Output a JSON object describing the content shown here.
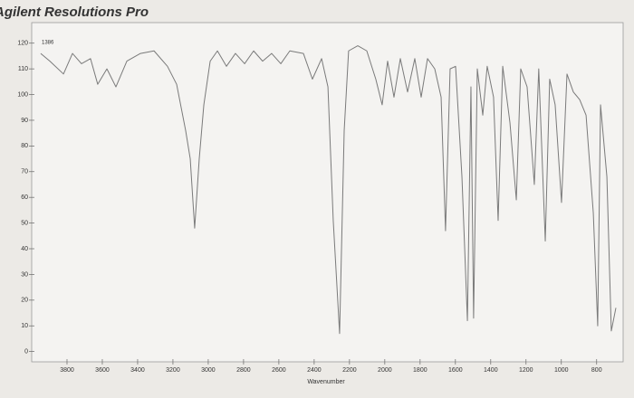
{
  "chart_data": {
    "type": "line",
    "title": "Agilent Resolutions Pro",
    "annotation": "1386",
    "x_label": "Wavenumber",
    "x": [
      3949,
      3897,
      3820,
      3769,
      3718,
      3667,
      3626,
      3574,
      3523,
      3461,
      3384,
      3307,
      3231,
      3179,
      3128,
      3102,
      3077,
      3051,
      3025,
      2989,
      2948,
      2897,
      2846,
      2794,
      2743,
      2692,
      2641,
      2589,
      2538,
      2461,
      2410,
      2358,
      2322,
      2292,
      2256,
      2230,
      2205,
      2153,
      2102,
      2051,
      2015,
      1984,
      1948,
      1912,
      1871,
      1830,
      1794,
      1758,
      1717,
      1681,
      1656,
      1630,
      1599,
      1563,
      1532,
      1512,
      1497,
      1476,
      1445,
      1420,
      1384,
      1358,
      1332,
      1291,
      1255,
      1230,
      1194,
      1153,
      1128,
      1091,
      1066,
      1035,
      999,
      968,
      932,
      896,
      860,
      819,
      794,
      778,
      742,
      717,
      691
    ],
    "values": [
      116,
      113,
      108,
      116,
      112,
      114,
      104,
      110,
      103,
      113,
      116,
      117,
      111,
      104,
      86,
      75,
      48,
      75,
      96,
      113,
      117,
      111,
      116,
      112,
      117,
      113,
      116,
      112,
      117,
      116,
      106,
      114,
      103,
      51,
      7,
      86,
      117,
      119,
      117,
      106,
      96,
      113,
      99,
      114,
      101,
      114,
      99,
      114,
      110,
      99,
      47,
      110,
      111,
      68,
      12,
      103,
      13,
      110,
      92,
      111,
      99,
      51,
      111,
      89,
      59,
      110,
      103,
      65,
      110,
      43,
      106,
      96,
      58,
      108,
      101,
      98,
      92,
      54,
      10,
      96,
      68,
      8,
      17
    ],
    "color": "#7a7a7a",
    "xlim": [
      4000,
      650
    ],
    "xticks": [
      3800,
      3600,
      3400,
      3200,
      3000,
      2800,
      2600,
      2400,
      2200,
      2000,
      1800,
      1600,
      1400,
      1200,
      1000,
      800
    ],
    "ylim": [
      -4,
      128
    ],
    "yticks": [
      0,
      10,
      20,
      30,
      40,
      50,
      60,
      70,
      80,
      90,
      100,
      110,
      120
    ],
    "grid": false
  }
}
